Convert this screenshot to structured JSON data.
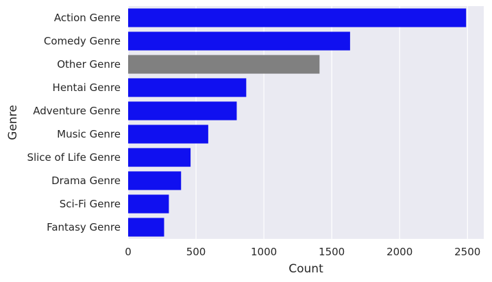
{
  "chart_data": {
    "type": "bar",
    "orientation": "horizontal",
    "categories": [
      "Action Genre",
      "Comedy Genre",
      "Other Genre",
      "Hentai Genre",
      "Adventure Genre",
      "Music Genre",
      "Slice of Life Genre",
      "Drama Genre",
      "Sci-Fi Genre",
      "Fantasy Genre"
    ],
    "values": [
      2490,
      1635,
      1410,
      870,
      800,
      590,
      460,
      390,
      300,
      265
    ],
    "bar_colors": [
      "#1010f0",
      "#1010f0",
      "#808080",
      "#1010f0",
      "#1010f0",
      "#1010f0",
      "#1010f0",
      "#1010f0",
      "#1010f0",
      "#1010f0"
    ],
    "xlabel": "Count",
    "ylabel": "Genre",
    "xlim": [
      0,
      2620
    ],
    "xticks": [
      0,
      500,
      1000,
      1500,
      2000,
      2500
    ],
    "xtick_labels": [
      "0",
      "500",
      "1000",
      "1500",
      "2000",
      "2500"
    ],
    "grid": "vertical",
    "background": "#eaeaf2"
  }
}
